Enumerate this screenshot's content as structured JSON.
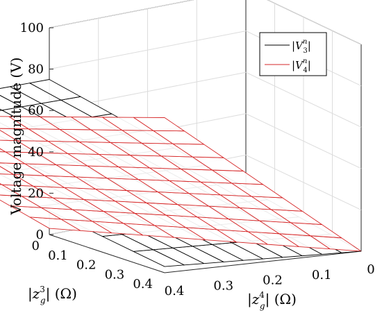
{
  "chart_data": {
    "type": "surface3d",
    "title": "",
    "zlabel": "Voltage magnitude (V)",
    "xlabel_parts": {
      "pre": "|z",
      "sub": "g",
      "sup": "3",
      "post": "| (Ω)"
    },
    "ylabel_parts": {
      "pre": "|z",
      "sub": "g",
      "sup": "4",
      "post": "| (Ω)"
    },
    "x_ticks": [
      "0",
      "0.1",
      "0.2",
      "0.3",
      "0.4"
    ],
    "y_ticks": [
      "0.4",
      "0.3",
      "0.2",
      "0.1",
      "0"
    ],
    "z_ticks": [
      "0",
      "20",
      "40",
      "60",
      "80",
      "100"
    ],
    "xlim": [
      0,
      0.4
    ],
    "ylim": [
      0,
      0.4
    ],
    "zlim": [
      0,
      100
    ],
    "grid": true,
    "legend_position": "top-right",
    "grid_steps": 10,
    "series": [
      {
        "legend": {
          "pre": "|",
          "base": "V",
          "sup": "n",
          "sub": "3",
          "post": "|"
        },
        "color": "#000000",
        "corners": {
          "z3_0_z4_0": 0,
          "z3_04_z4_0": 75,
          "z3_0_z4_04": 3,
          "z3_04_z4_04": 68
        }
      },
      {
        "legend": {
          "pre": "|",
          "base": "V",
          "sup": "n",
          "sub": "4",
          "post": "|"
        },
        "color": "#d62728",
        "corners": {
          "z3_0_z4_0": 0,
          "z3_04_z4_0": 3,
          "z3_0_z4_04": 75,
          "z3_04_z4_04": 68
        }
      }
    ]
  }
}
